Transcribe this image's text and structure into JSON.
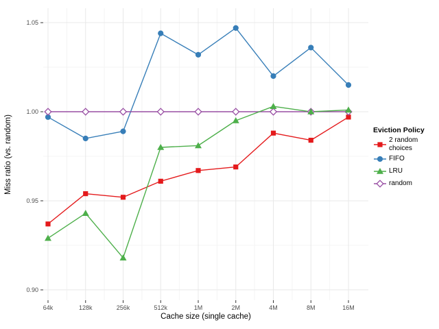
{
  "chart_data": {
    "type": "line",
    "title": "",
    "xlabel": "Cache size (single cache)",
    "ylabel": "Miss ratio (vs. random)",
    "categories": [
      "64k",
      "128k",
      "256k",
      "512k",
      "1M",
      "2M",
      "4M",
      "8M",
      "16M"
    ],
    "y_ticks": [
      0.9,
      0.95,
      1.0,
      1.05
    ],
    "y_tick_labels": [
      "0.90",
      "0.95",
      "1.00",
      "1.05"
    ],
    "y_minor_ticks": [
      0.925,
      0.975,
      1.025
    ],
    "ylim": [
      0.8942,
      1.0581
    ],
    "grid": "major+minor",
    "legend_position": "right",
    "legend_title": "Eviction Policy",
    "series": [
      {
        "name": "2 random choices",
        "marker": "square",
        "color": "#e41a1c",
        "values": [
          0.937,
          0.954,
          0.952,
          0.961,
          0.967,
          0.969,
          0.988,
          0.984,
          0.997
        ]
      },
      {
        "name": "FIFO",
        "marker": "circle",
        "color": "#377eb8",
        "values": [
          0.997,
          0.985,
          0.989,
          1.044,
          1.032,
          1.047,
          1.02,
          1.036,
          1.015
        ]
      },
      {
        "name": "LRU",
        "marker": "triangle",
        "color": "#4daf4a",
        "values": [
          0.929,
          0.943,
          0.918,
          0.98,
          0.981,
          0.995,
          1.003,
          1.0,
          1.001
        ]
      },
      {
        "name": "random",
        "marker": "diamond-open",
        "color": "#984ea3",
        "values": [
          1.0,
          1.0,
          1.0,
          1.0,
          1.0,
          1.0,
          1.0,
          1.0,
          1.0
        ]
      }
    ],
    "colors": {
      "grid_major": "#e8e8e8",
      "grid_minor": "#f4f4f4",
      "tick_mark": "#333333",
      "tick_label": "#4d4d4d",
      "background": "#ffffff"
    }
  }
}
